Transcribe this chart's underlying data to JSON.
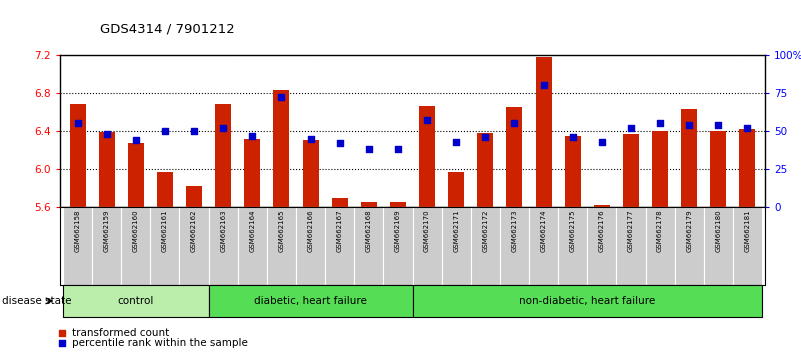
{
  "title": "GDS4314 / 7901212",
  "samples": [
    "GSM662158",
    "GSM662159",
    "GSM662160",
    "GSM662161",
    "GSM662162",
    "GSM662163",
    "GSM662164",
    "GSM662165",
    "GSM662166",
    "GSM662167",
    "GSM662168",
    "GSM662169",
    "GSM662170",
    "GSM662171",
    "GSM662172",
    "GSM662173",
    "GSM662174",
    "GSM662175",
    "GSM662176",
    "GSM662177",
    "GSM662178",
    "GSM662179",
    "GSM662180",
    "GSM662181"
  ],
  "bar_values": [
    6.68,
    6.39,
    6.27,
    5.97,
    5.82,
    6.68,
    6.32,
    6.83,
    6.3,
    5.7,
    5.65,
    5.65,
    6.66,
    5.97,
    6.38,
    6.65,
    7.18,
    6.35,
    5.62,
    6.37,
    6.4,
    6.63,
    6.4,
    6.42
  ],
  "dot_values": [
    55,
    48,
    44,
    50,
    50,
    52,
    47,
    72,
    45,
    42,
    38,
    38,
    57,
    43,
    46,
    55,
    80,
    46,
    43,
    52,
    55,
    54,
    54,
    52
  ],
  "ylim_left": [
    5.6,
    7.2
  ],
  "ylim_right": [
    0,
    100
  ],
  "yticks_left": [
    5.6,
    6.0,
    6.4,
    6.8,
    7.2
  ],
  "yticks_right": [
    0,
    25,
    50,
    75,
    100
  ],
  "ytick_labels_right": [
    "0",
    "25",
    "50",
    "75",
    "100%"
  ],
  "bar_color": "#CC2200",
  "dot_color": "#0000CC",
  "bar_width": 0.55,
  "group_defs": [
    {
      "start": 0,
      "end": 4,
      "label": "control",
      "color": "#BBEEAA"
    },
    {
      "start": 5,
      "end": 11,
      "label": "diabetic, heart failure",
      "color": "#55DD55"
    },
    {
      "start": 12,
      "end": 23,
      "label": "non-diabetic, heart failure",
      "color": "#55DD55"
    }
  ],
  "disease_state_label": "disease state",
  "legend_bar_label": "transformed count",
  "legend_dot_label": "percentile rank within the sample"
}
